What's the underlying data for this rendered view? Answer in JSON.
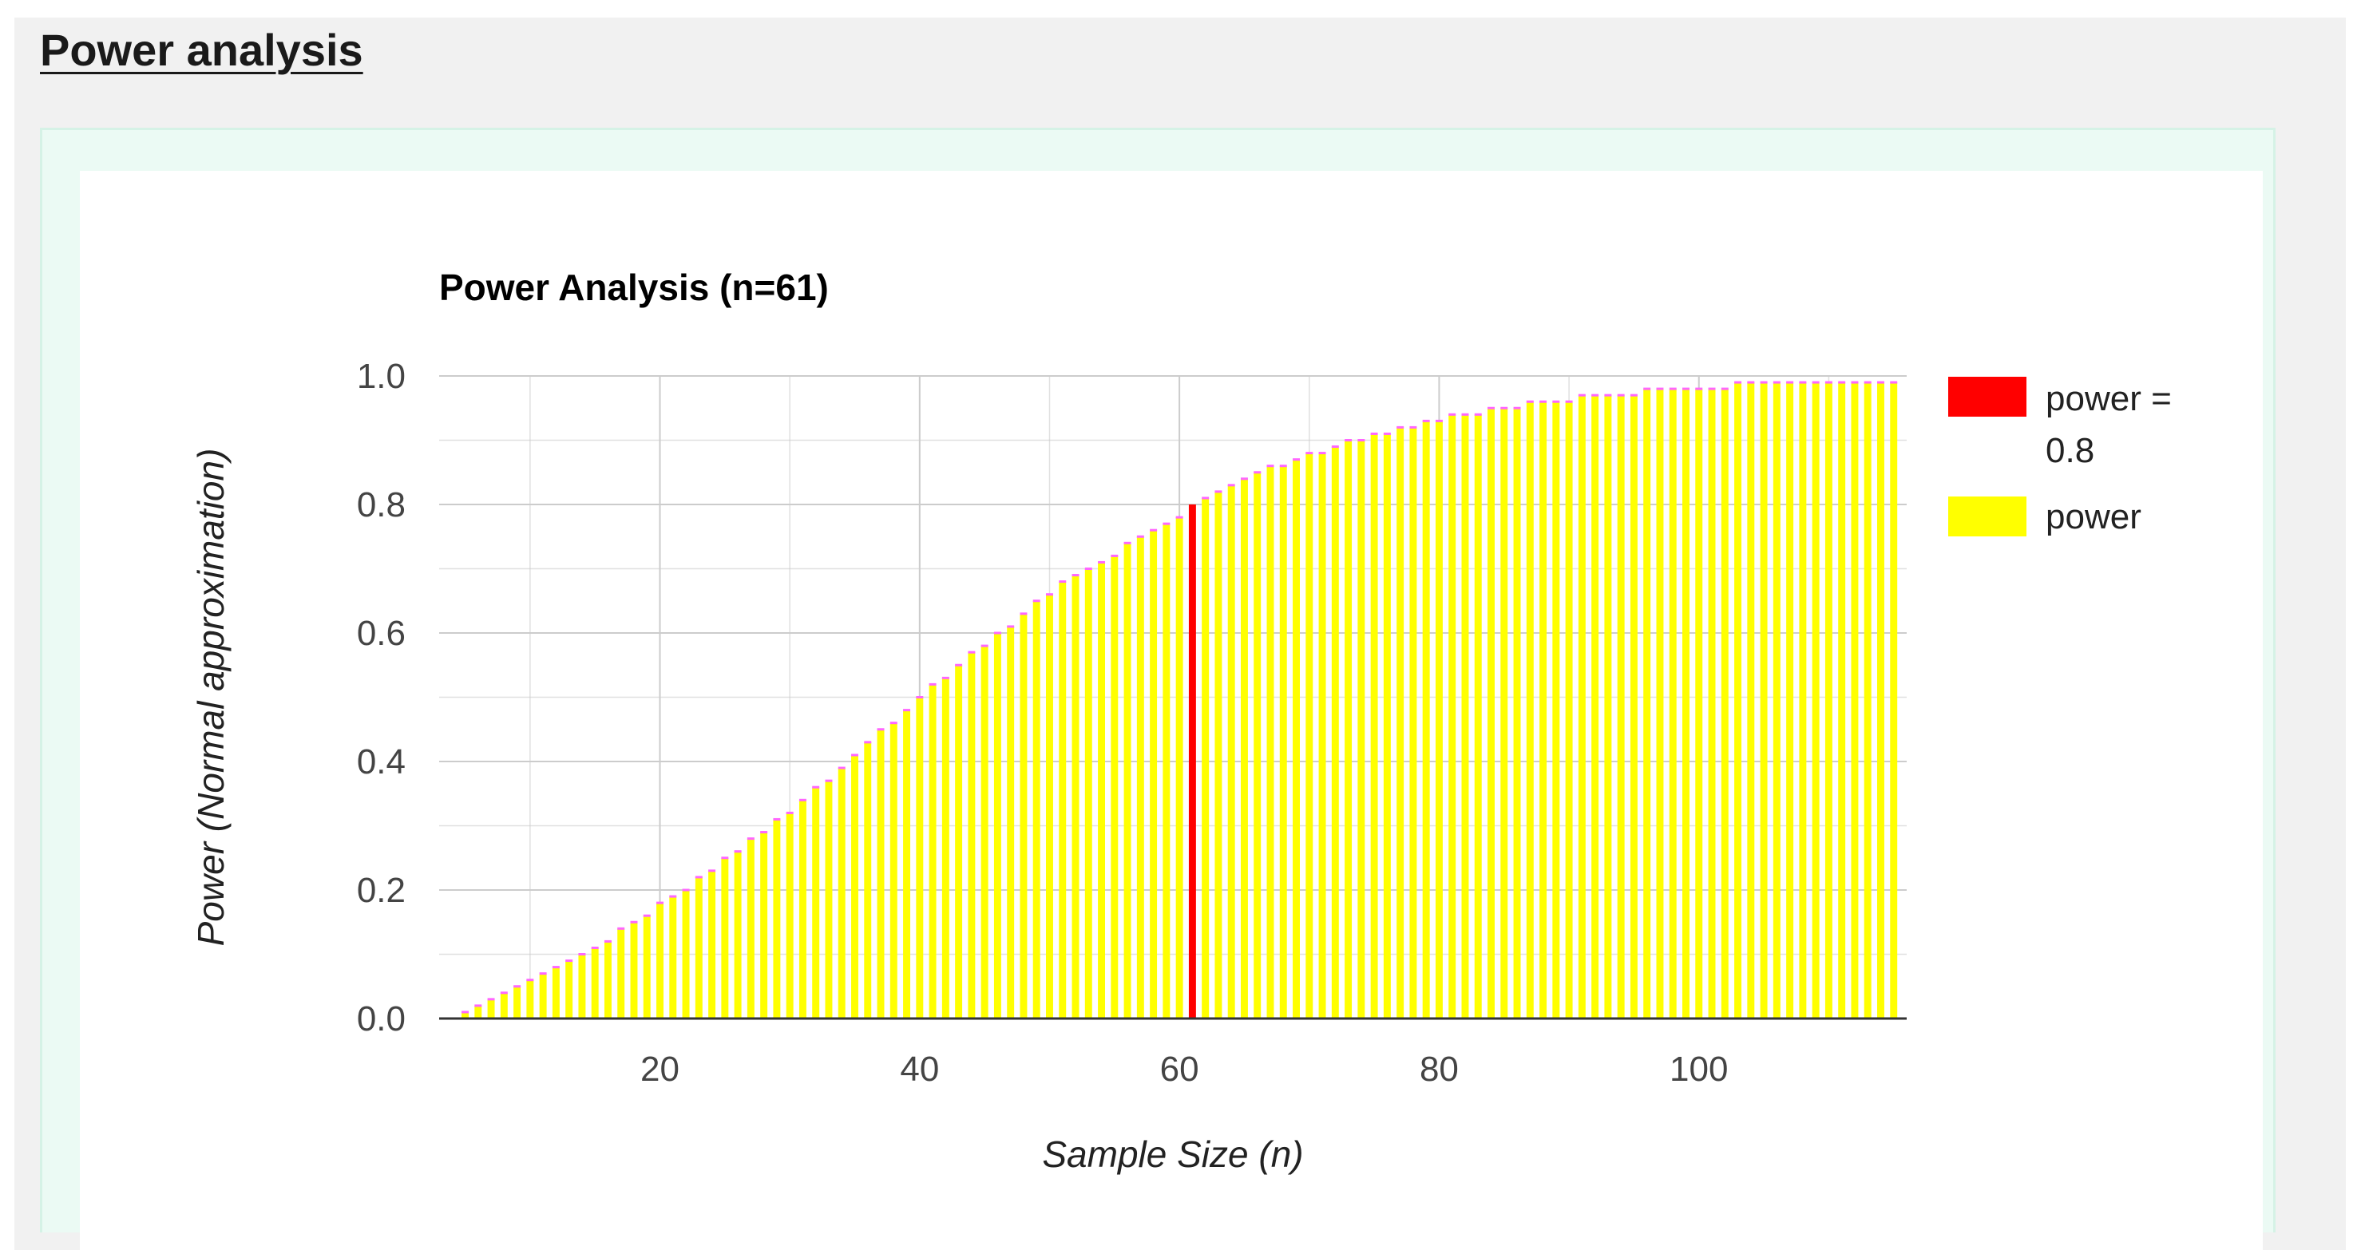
{
  "page": {
    "section_title": "Power analysis"
  },
  "colors": {
    "background": "#f1f1f1",
    "frame": "#ebfaf4",
    "power_bar": "#ffff00",
    "power_bar_edge": "#ff66ff",
    "highlight_bar": "#ff0000",
    "gridline": "#cccccc",
    "axis": "#333333"
  },
  "chart_data": {
    "type": "bar",
    "title": "Power Analysis (n=61)",
    "xlabel": "Sample Size (n)",
    "ylabel": "Power (Normal approximation)",
    "xlim": [
      3,
      116
    ],
    "ylim": [
      0,
      1
    ],
    "x_ticks": [
      20,
      40,
      60,
      80,
      100
    ],
    "x_tick_labels": [
      "20",
      "40",
      "60",
      "80",
      "100"
    ],
    "y_ticks": [
      0,
      0.2,
      0.4,
      0.6,
      0.8,
      1.0
    ],
    "y_tick_labels": [
      "0.0",
      "0.2",
      "0.4",
      "0.6",
      "0.8",
      "1.0"
    ],
    "grid": true,
    "legend_position": "right",
    "highlight_x": 61,
    "series": [
      {
        "name": "power = 0.8",
        "color": "#ff0000",
        "x": [
          61
        ],
        "values": [
          0.8
        ]
      },
      {
        "name": "power",
        "color": "#ffff00",
        "x": [
          5,
          6,
          7,
          8,
          9,
          10,
          11,
          12,
          13,
          14,
          15,
          16,
          17,
          18,
          19,
          20,
          21,
          22,
          23,
          24,
          25,
          26,
          27,
          28,
          29,
          30,
          31,
          32,
          33,
          34,
          35,
          36,
          37,
          38,
          39,
          40,
          41,
          42,
          43,
          44,
          45,
          46,
          47,
          48,
          49,
          50,
          51,
          52,
          53,
          54,
          55,
          56,
          57,
          58,
          59,
          60,
          61,
          62,
          63,
          64,
          65,
          66,
          67,
          68,
          69,
          70,
          71,
          72,
          73,
          74,
          75,
          76,
          77,
          78,
          79,
          80,
          81,
          82,
          83,
          84,
          85,
          86,
          87,
          88,
          89,
          90,
          91,
          92,
          93,
          94,
          95,
          96,
          97,
          98,
          99,
          100,
          101,
          102,
          103,
          104,
          105,
          106,
          107,
          108,
          109,
          110,
          111,
          112,
          113,
          114,
          115
        ],
        "values": [
          0.01,
          0.02,
          0.03,
          0.04,
          0.05,
          0.06,
          0.07,
          0.08,
          0.09,
          0.1,
          0.11,
          0.12,
          0.14,
          0.15,
          0.16,
          0.18,
          0.19,
          0.2,
          0.22,
          0.23,
          0.25,
          0.26,
          0.28,
          0.29,
          0.31,
          0.32,
          0.34,
          0.36,
          0.37,
          0.39,
          0.41,
          0.43,
          0.45,
          0.46,
          0.48,
          0.5,
          0.52,
          0.53,
          0.55,
          0.57,
          0.58,
          0.6,
          0.61,
          0.63,
          0.65,
          0.66,
          0.68,
          0.69,
          0.7,
          0.71,
          0.72,
          0.74,
          0.75,
          0.76,
          0.77,
          0.78,
          0.8,
          0.81,
          0.82,
          0.83,
          0.84,
          0.85,
          0.86,
          0.86,
          0.87,
          0.88,
          0.88,
          0.89,
          0.9,
          0.9,
          0.91,
          0.91,
          0.92,
          0.92,
          0.93,
          0.93,
          0.94,
          0.94,
          0.94,
          0.95,
          0.95,
          0.95,
          0.96,
          0.96,
          0.96,
          0.96,
          0.97,
          0.97,
          0.97,
          0.97,
          0.97,
          0.98,
          0.98,
          0.98,
          0.98,
          0.98,
          0.98,
          0.98,
          0.99,
          0.99,
          0.99,
          0.99,
          0.99,
          0.99,
          0.99,
          0.99,
          0.99,
          0.99,
          0.99,
          0.99,
          0.99
        ]
      }
    ]
  }
}
